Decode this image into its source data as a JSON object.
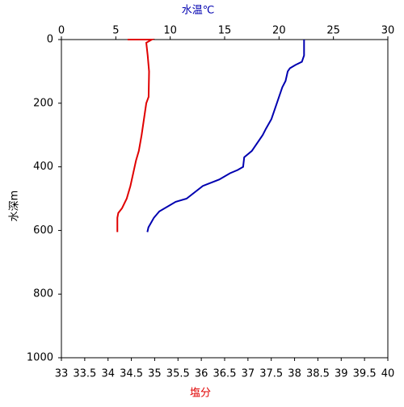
{
  "chart_data": {
    "type": "line",
    "x_label": "水温℃",
    "x2_label": "塩分",
    "y_label": "水深m",
    "xlim": [
      0,
      30
    ],
    "xticks": [
      0,
      5,
      10,
      15,
      20,
      25,
      30
    ],
    "x2lim": [
      33,
      40
    ],
    "x2ticks": [
      33,
      33.5,
      34,
      34.5,
      35,
      35.5,
      36,
      36.5,
      37,
      37.5,
      38,
      38.5,
      39,
      39.5,
      40
    ],
    "ylim": [
      0,
      1000
    ],
    "yticks": [
      0,
      200,
      400,
      600,
      800,
      1000
    ],
    "y_inverted": true,
    "series": [
      {
        "color": "#0000b0",
        "axis": "x",
        "depth": [
          0,
          50,
          70,
          80,
          90,
          100,
          130,
          150,
          200,
          250,
          280,
          300,
          350,
          370,
          400,
          410,
          420,
          440,
          460,
          500,
          510,
          540,
          560,
          590,
          605
        ],
        "values": [
          22.3,
          22.3,
          22.1,
          21.5,
          21.0,
          20.8,
          20.6,
          20.3,
          19.8,
          19.3,
          18.8,
          18.5,
          17.5,
          16.8,
          16.7,
          16.2,
          15.5,
          14.5,
          13.0,
          11.5,
          10.5,
          9.0,
          8.5,
          8.0,
          7.9
        ]
      },
      {
        "color": "#e00000",
        "axis": "x2",
        "depth": [
          0,
          0,
          10,
          50,
          100,
          180,
          200,
          300,
          350,
          380,
          420,
          460,
          500,
          530,
          545,
          560,
          605
        ],
        "values": [
          34.42,
          34.94,
          34.82,
          34.85,
          34.88,
          34.87,
          34.82,
          34.72,
          34.66,
          34.6,
          34.54,
          34.48,
          34.4,
          34.3,
          34.22,
          34.2,
          34.2
        ]
      }
    ]
  }
}
